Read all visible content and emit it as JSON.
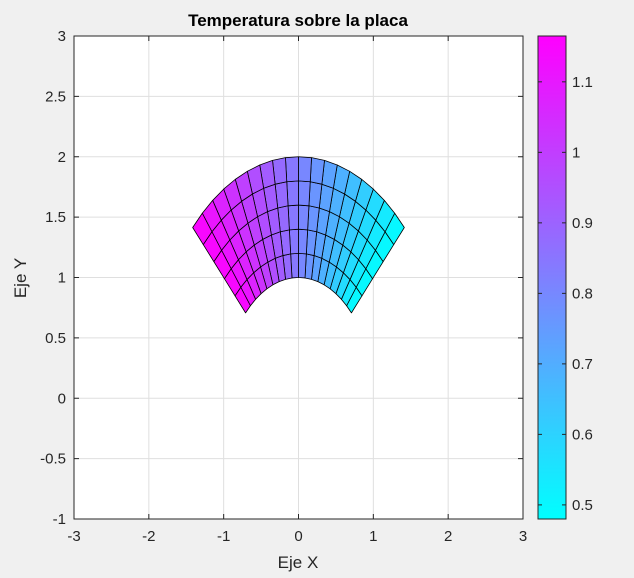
{
  "chart_data": {
    "type": "heatmap",
    "title": "Temperatura sobre la placa",
    "xlabel": "Eje X",
    "ylabel": "Eje Y",
    "xlim": [
      -3,
      3
    ],
    "ylim": [
      -1,
      3
    ],
    "x_ticks": [
      "-3",
      "-2",
      "-1",
      "0",
      "1",
      "2",
      "3"
    ],
    "y_ticks": [
      "-1",
      "-0.5",
      "0",
      "0.5",
      "1",
      "1.5",
      "2",
      "2.5",
      "3"
    ],
    "grid": true,
    "colormap": "cool",
    "colormap_colors": [
      "#00ffff",
      "#ff00ff"
    ],
    "clim": [
      0.48,
      1.165
    ],
    "colorbar_ticks": [
      "0.5",
      "0.6",
      "0.7",
      "0.8",
      "0.9",
      "1",
      "1.1"
    ],
    "colorbar_location": "right",
    "surface": {
      "shape": "annular sector",
      "radius_range": [
        1,
        2
      ],
      "angle_range_deg": [
        45,
        135
      ],
      "radial_divisions": 5,
      "angular_divisions": 18,
      "value_model": "0.48 + 0.685 * (angle - 45) / 90",
      "value_range": [
        0.48,
        1.165
      ]
    }
  }
}
